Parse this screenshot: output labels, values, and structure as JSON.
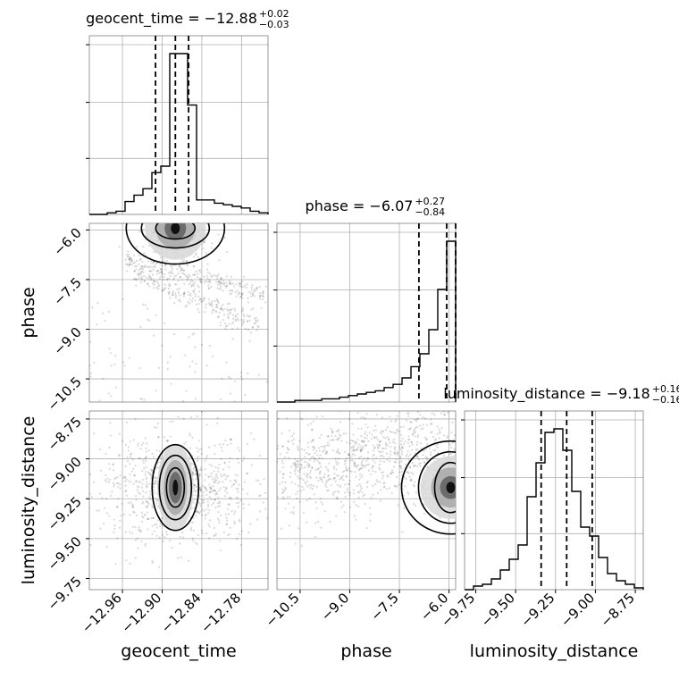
{
  "chart_data": {
    "type": "corner",
    "parameters": [
      {
        "name": "geocent_time",
        "xlabel": "geocent_time",
        "ylabel": "",
        "range": [
          -13.01,
          -12.74
        ],
        "ticks": [
          -12.96,
          -12.9,
          -12.84,
          -12.78
        ],
        "tick_labels": [
          "−12.96",
          "−12.90",
          "−12.84",
          "−12.78"
        ],
        "title_main": "geocent_time = −12.88",
        "title_up": "+0.02",
        "title_down": "−0.03",
        "quantiles": [
          -12.91,
          -12.88,
          -12.86
        ],
        "hist_edges_start": -13.01,
        "hist_bin_width": 0.0135,
        "hist_counts": [
          0,
          0,
          1,
          2,
          8,
          12,
          16,
          26,
          30,
          100,
          100,
          68,
          9,
          9,
          7,
          6,
          5,
          4,
          2,
          1
        ]
      },
      {
        "name": "phase",
        "xlabel": "phase",
        "ylabel": "phase",
        "range": [
          -11.2,
          -5.8
        ],
        "ticks": [
          -10.5,
          -9.0,
          -7.5,
          -6.0
        ],
        "tick_labels": [
          "−10.5",
          "−9.0",
          "−7.5",
          "−6.0"
        ],
        "title_main": "phase = −6.07",
        "title_up": "+0.27",
        "title_down": "−0.84",
        "quantiles": [
          -6.91,
          -6.07,
          -5.8
        ],
        "hist_edges_start": -11.2,
        "hist_bin_width": 0.27,
        "hist_counts": [
          0,
          0,
          1,
          1,
          1,
          2,
          2,
          3,
          4,
          5,
          6,
          7,
          9,
          11,
          15,
          22,
          30,
          45,
          70,
          100
        ]
      },
      {
        "name": "luminosity_distance",
        "xlabel": "luminosity_distance",
        "ylabel": "luminosity_distance",
        "range": [
          -9.82,
          -8.7
        ],
        "ticks": [
          -9.75,
          -9.5,
          -9.25,
          -9.0,
          -8.75
        ],
        "tick_labels": [
          "−9.75",
          "−9.50",
          "−9.25",
          "−9.00",
          "−8.75"
        ],
        "title_main": "luminosity_distance = −9.18",
        "title_up": "+0.16",
        "title_down": "−0.16",
        "quantiles": [
          -9.34,
          -9.18,
          -9.02
        ],
        "hist_edges_start": -9.82,
        "hist_bin_width": 0.056,
        "hist_counts": [
          0,
          2,
          3,
          6,
          11,
          17,
          25,
          52,
          71,
          88,
          90,
          78,
          55,
          35,
          30,
          18,
          9,
          5,
          3,
          1
        ]
      }
    ],
    "pairs": [
      {
        "x": "geocent_time",
        "y": "phase",
        "core": {
          "x": -12.88,
          "y": -5.95
        }
      },
      {
        "x": "geocent_time",
        "y": "luminosity_distance",
        "core": {
          "x": -12.88,
          "y": -9.18
        }
      },
      {
        "x": "phase",
        "y": "luminosity_distance",
        "core": {
          "x": -5.95,
          "y": -9.18
        }
      }
    ],
    "grid": true,
    "colors": {
      "line": "#000000",
      "grid": "#b0b0b0",
      "points": "#000000"
    }
  }
}
